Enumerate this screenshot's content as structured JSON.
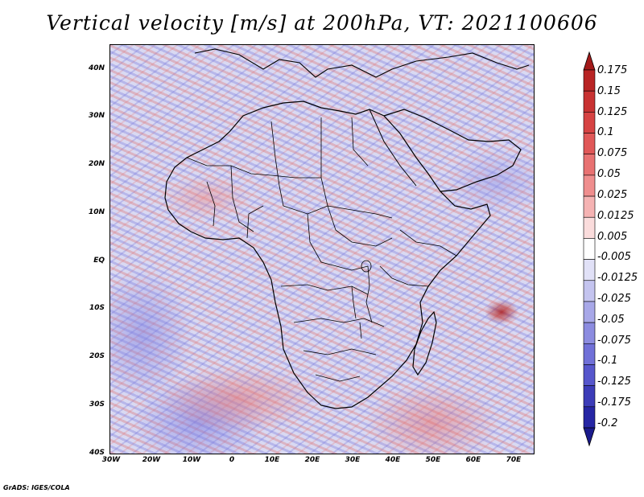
{
  "title": "Vertical velocity [m/s] at 200hPa, VT: 2021100606",
  "map": {
    "lat_labels": [
      "40N",
      "30N",
      "20N",
      "10N",
      "EQ",
      "10S",
      "20S",
      "30S",
      "40S"
    ],
    "lon_labels": [
      "30W",
      "20W",
      "10W",
      "0",
      "10E",
      "20E",
      "30E",
      "40E",
      "50E",
      "60E",
      "70E"
    ],
    "lat_range": [
      -40,
      44
    ],
    "lon_range": [
      -30,
      75
    ],
    "variable": "Vertical velocity",
    "level": "200hPa",
    "valid_time": "2021100606"
  },
  "colorbar": {
    "levels": [
      "0.175",
      "0.15",
      "0.125",
      "0.1",
      "0.075",
      "0.05",
      "0.025",
      "0.0125",
      "0.005",
      "-0.005",
      "-0.0125",
      "-0.025",
      "-0.05",
      "-0.075",
      "-0.1",
      "-0.125",
      "-0.175",
      "-0.2"
    ],
    "colors": [
      "#a31a1a",
      "#b82424",
      "#c83232",
      "#d64343",
      "#e05858",
      "#e87272",
      "#ef8e8e",
      "#f5b3b3",
      "#fadcdc",
      "#ffffff",
      "#e1e1f7",
      "#c4c4ef",
      "#a8a8e8",
      "#8c8ce0",
      "#7070d8",
      "#5656cc",
      "#3c3cb8",
      "#2626a4",
      "#1a1a8c"
    ]
  },
  "credit": "GrADS: IGES/COLA"
}
